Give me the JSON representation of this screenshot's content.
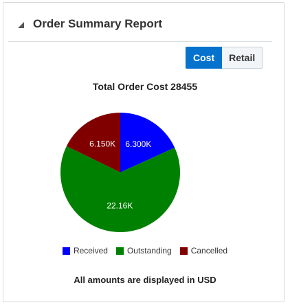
{
  "panel": {
    "title": "Order Summary Report"
  },
  "toggle": {
    "cost_label": "Cost",
    "retail_label": "Retail",
    "selected": "Cost"
  },
  "chart": {
    "title": "Total Order Cost 28455",
    "footnote": "All amounts are displayed in USD"
  },
  "chart_data": {
    "type": "pie",
    "title": "Total Order Cost 28455",
    "slices": [
      {
        "name": "Received",
        "value": 6300,
        "label": "6.300K",
        "color": "#0000ff"
      },
      {
        "name": "Outstanding",
        "value": 22160,
        "label": "22.16K",
        "color": "#008000"
      },
      {
        "name": "Cancelled",
        "value": 6150,
        "label": "6.150K",
        "color": "#800000"
      }
    ],
    "legend_position": "bottom"
  }
}
